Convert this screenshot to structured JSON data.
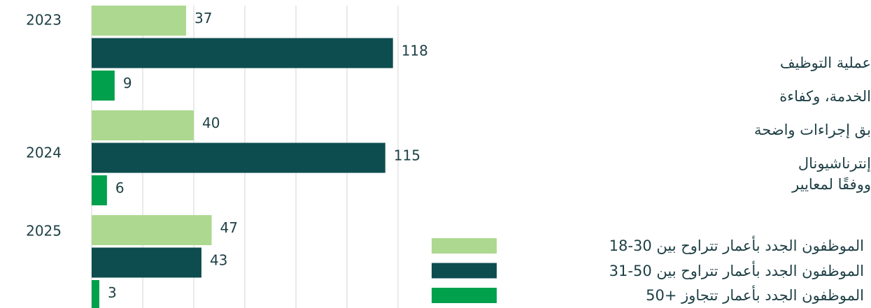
{
  "chart_data": {
    "type": "barh",
    "categories": [
      "2023",
      "2024",
      "2025"
    ],
    "series": [
      {
        "name": "الموظفون الجدد بأعمار تتراوح بين 30-18",
        "color": "#acd98f",
        "values": [
          37,
          40,
          47
        ]
      },
      {
        "name": "الموظفون الجدد بأعمار تتراوح بين 50-31",
        "color": "#0e4d4f",
        "values": [
          118,
          115,
          43
        ]
      },
      {
        "name": "الموظفون الجدد بأعمار تتجاوز +50",
        "color": "#00a04c",
        "values": [
          9,
          6,
          3
        ]
      }
    ],
    "xlim": [
      0,
      120
    ],
    "xticks": [
      0,
      20,
      40,
      60,
      80,
      100,
      120
    ],
    "grid": true,
    "side_text": [
      "عملية التوظيف",
      "الخدمة، وكفاءة",
      "بق إجراءات واضحة",
      "إنترناشيونال",
      "ووفقًا لمعايير"
    ]
  }
}
